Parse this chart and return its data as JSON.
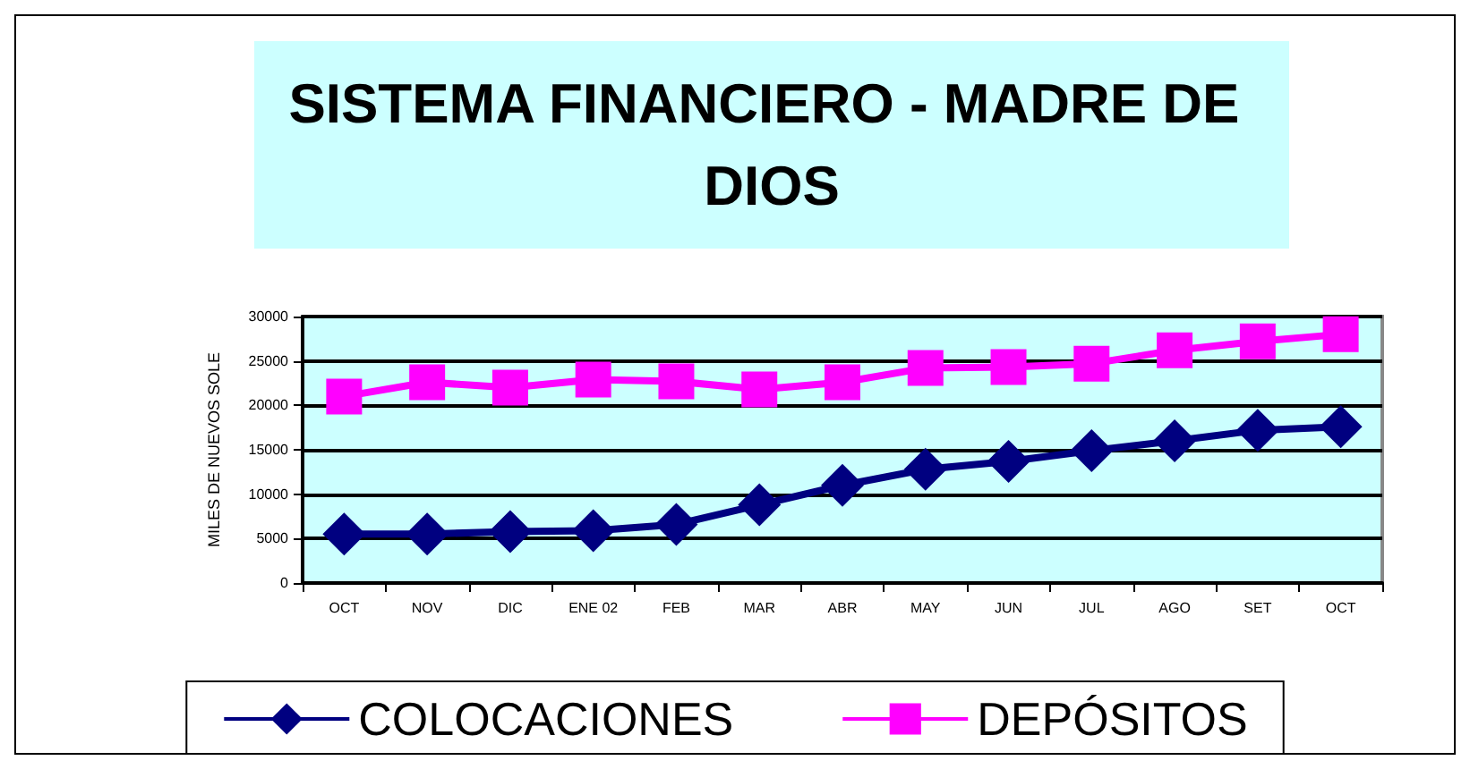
{
  "chart_data": {
    "type": "line",
    "title": "SISTEMA FINANCIERO - MADRE DE DIOS",
    "ylabel": "MILES DE NUEVOS SOLE",
    "categories": [
      "OCT",
      "NOV",
      "DIC",
      "ENE 02",
      "FEB",
      "MAR",
      "ABR",
      "MAY",
      "JUN",
      "JUL",
      "AGO",
      "SET",
      "OCT"
    ],
    "series": [
      {
        "name": "COLOCACIONES",
        "color": "#000080",
        "marker": "diamond",
        "values": [
          5500,
          5500,
          5800,
          5900,
          6600,
          8800,
          11000,
          12800,
          13700,
          14900,
          16000,
          17200,
          17600
        ]
      },
      {
        "name": "DEPÓSITOS",
        "color": "#ff00ff",
        "marker": "square",
        "values": [
          21000,
          22600,
          22000,
          22900,
          22700,
          21800,
          22600,
          24200,
          24300,
          24700,
          26200,
          27200,
          28000
        ]
      }
    ],
    "ylim": [
      0,
      30000
    ],
    "yticks": [
      0,
      5000,
      10000,
      15000,
      20000,
      25000,
      30000
    ],
    "grid": "y",
    "legend": "bottom",
    "line_style": "solid"
  }
}
